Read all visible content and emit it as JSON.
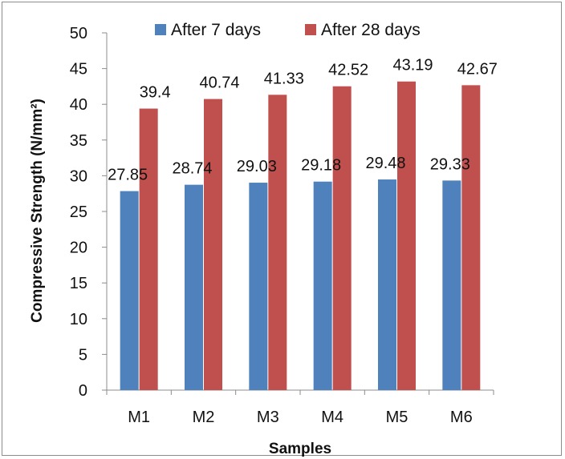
{
  "chart_data": {
    "type": "bar",
    "categories": [
      "M1",
      "M2",
      "M3",
      "M4",
      "M5",
      "M6"
    ],
    "series": [
      {
        "name": "After 7 days",
        "values": [
          27.85,
          28.74,
          29.03,
          29.18,
          29.48,
          29.33
        ],
        "labels": [
          "27.85",
          "28.74",
          "29.03",
          "29.18",
          "29.48",
          "29.33"
        ],
        "color": "#4f81bd"
      },
      {
        "name": "After 28 days",
        "values": [
          39.4,
          40.74,
          41.33,
          42.52,
          43.19,
          42.67
        ],
        "labels": [
          "39.4",
          "40.74",
          "41.33",
          "42.52",
          "43.19",
          "42.67"
        ],
        "color": "#c0504d"
      }
    ],
    "title": "",
    "xlabel": "Samples",
    "ylabel": "Compressive Strength (N/mm²)",
    "ylim": [
      0,
      50
    ],
    "yticks": [
      "0",
      "5",
      "10",
      "15",
      "20",
      "25",
      "30",
      "35",
      "40",
      "45",
      "50"
    ],
    "grid": false,
    "legend_position": "top"
  }
}
